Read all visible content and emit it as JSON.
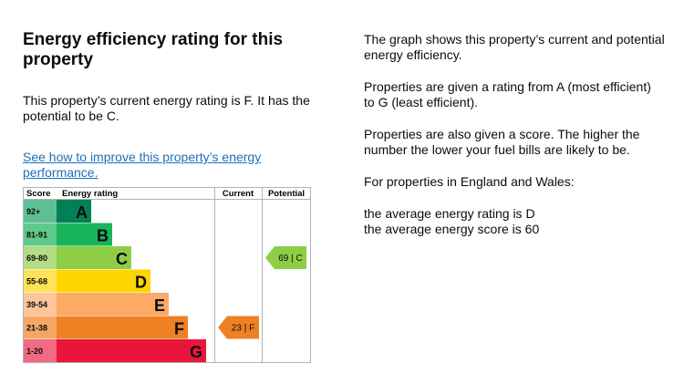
{
  "title": "Energy efficiency rating for this property",
  "current_text": "This property’s current energy rating is F. It has the potential to be C.",
  "improve_link": "See how to improve this property’s energy performance.",
  "right": {
    "p1": "The graph shows this property’s current and potential energy efficiency.",
    "p2": "Properties are given a rating from A (most efficient) to G (least efficient).",
    "p3": "Properties are also given a score. The higher the number the lower your fuel bills are likely to be.",
    "p4": "For properties in England and Wales:",
    "avg_rating": "the average energy rating is D",
    "avg_score": "the average energy score is 60"
  },
  "chart": {
    "headers": {
      "score": "Score",
      "rating": "Energy rating",
      "current": "Current",
      "potential": "Potential"
    },
    "bands": [
      {
        "range": "92+",
        "letter": "A",
        "color": "#008054"
      },
      {
        "range": "81-91",
        "letter": "B",
        "color": "#19b459"
      },
      {
        "range": "69-80",
        "letter": "C",
        "color": "#8dce46"
      },
      {
        "range": "55-68",
        "letter": "D",
        "color": "#ffd500"
      },
      {
        "range": "39-54",
        "letter": "E",
        "color": "#fcaa65"
      },
      {
        "range": "21-38",
        "letter": "F",
        "color": "#ef8023"
      },
      {
        "range": "1-20",
        "letter": "G",
        "color": "#e9153b"
      }
    ],
    "current": {
      "score": "23",
      "letter": "F",
      "label": "23 | F",
      "band_index": 5,
      "color": "#ef8023"
    },
    "potential": {
      "score": "69",
      "letter": "C",
      "label": "69 | C",
      "band_index": 2,
      "color": "#8dce46"
    }
  }
}
